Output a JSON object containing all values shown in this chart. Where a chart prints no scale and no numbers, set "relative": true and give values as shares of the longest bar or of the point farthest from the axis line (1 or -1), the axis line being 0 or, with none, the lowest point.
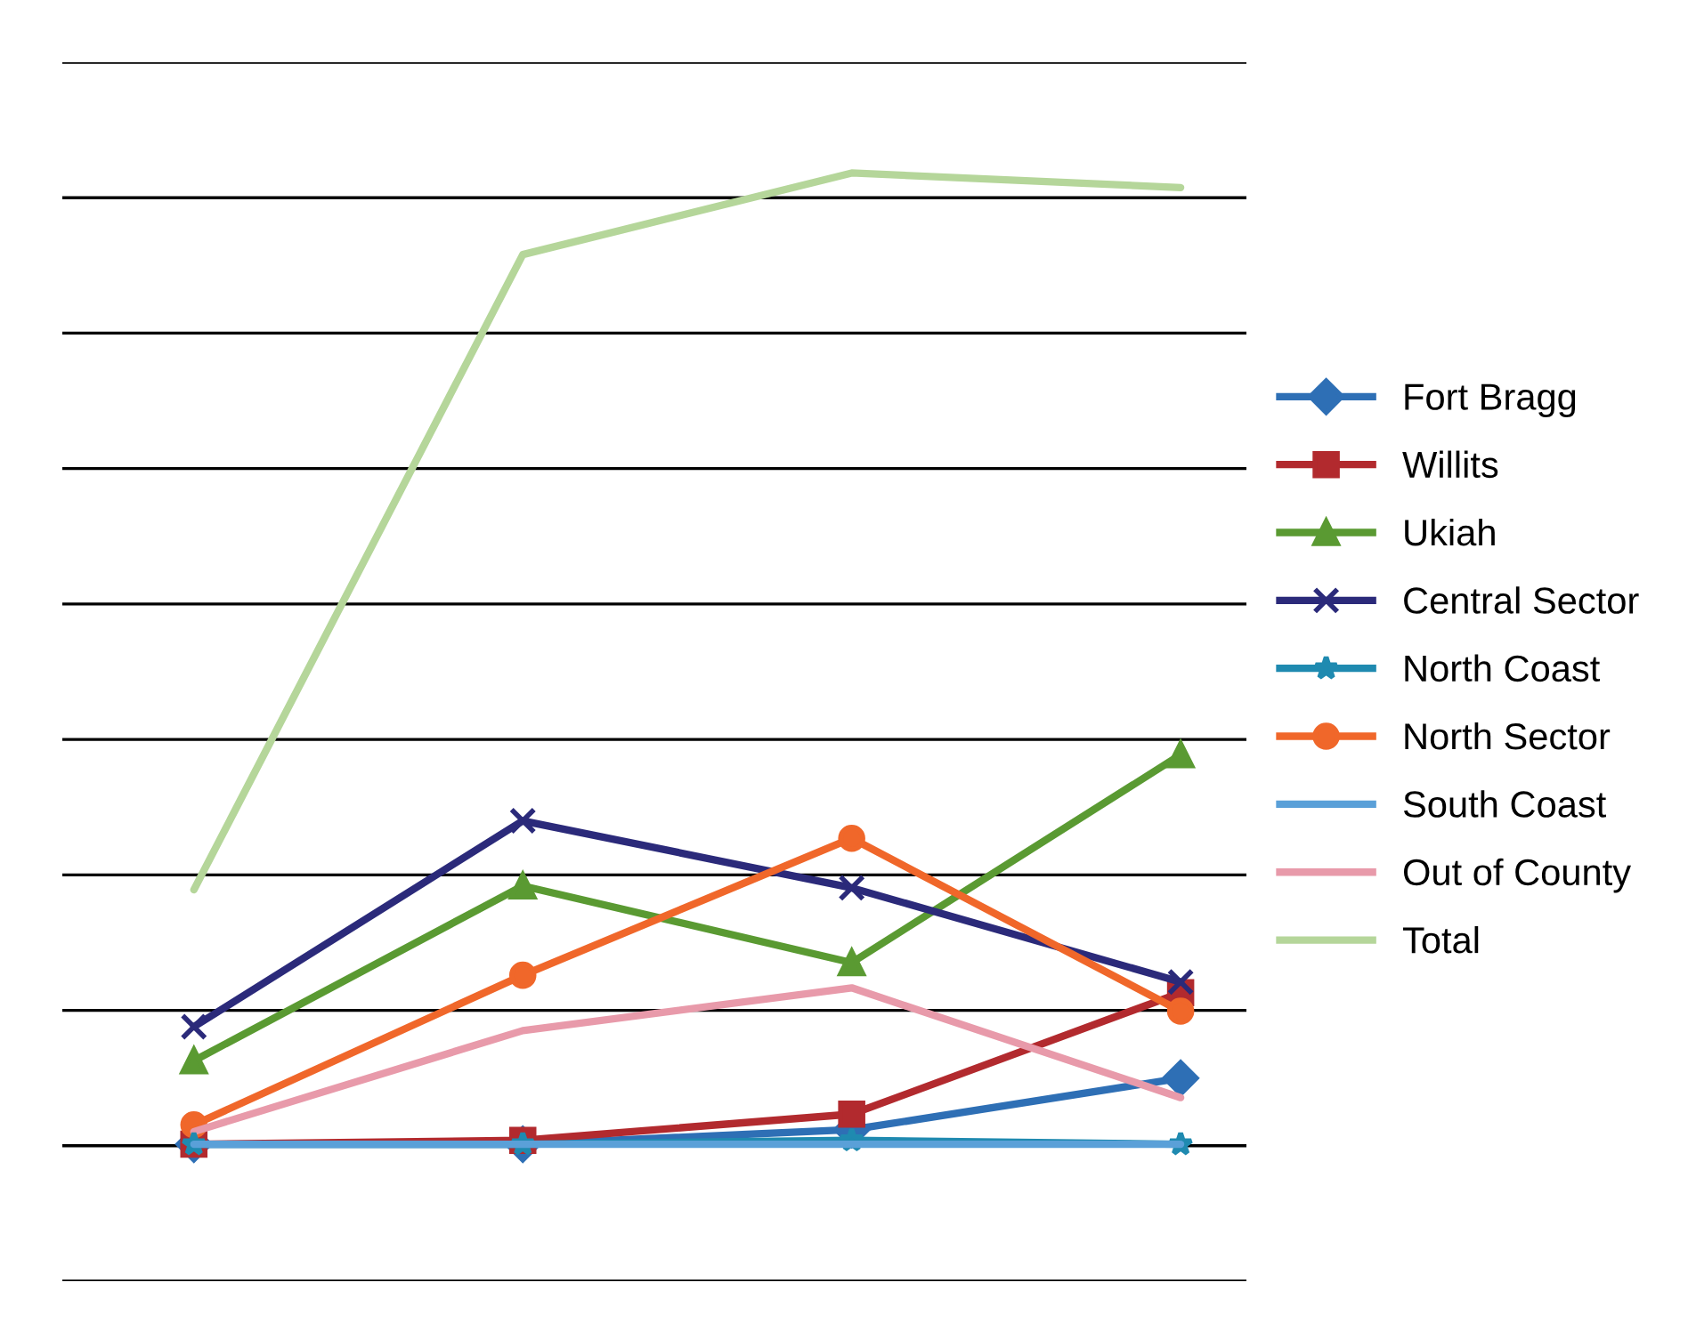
{
  "chart_data": {
    "type": "line",
    "relative": true,
    "grid": "y",
    "legend": "right",
    "categories": [
      null,
      null,
      null,
      null
    ],
    "series": [
      {
        "name": "Fort Bragg",
        "color": "#2e6fb5",
        "marker": "diamond",
        "values": [
          0,
          0,
          0.015,
          0.068
        ]
      },
      {
        "name": "Willits",
        "color": "#b22a2e",
        "marker": "square",
        "values": [
          0,
          0.004,
          0.031,
          0.156
        ]
      },
      {
        "name": "Ukiah",
        "color": "#5a9a32",
        "marker": "triangle",
        "values": [
          0.086,
          0.266,
          0.187,
          0.401
        ]
      },
      {
        "name": "Central Sector",
        "color": "#2b2a7a",
        "marker": "cross",
        "values": [
          0.121,
          0.333,
          0.264,
          0.167
        ]
      },
      {
        "name": "North Coast",
        "color": "#1f8ab0",
        "marker": "star",
        "values": [
          0,
          0,
          0.004,
          0
        ]
      },
      {
        "name": "North Sector",
        "color": "#f0672a",
        "marker": "circle",
        "values": [
          0.02,
          0.174,
          0.315,
          0.137
        ]
      },
      {
        "name": "South Coast",
        "color": "#5aa0d8",
        "marker": "none",
        "values": [
          0,
          0,
          0,
          0
        ]
      },
      {
        "name": "Out of County",
        "color": "#e89aaa",
        "marker": "none",
        "values": [
          0.013,
          0.117,
          0.161,
          0.048
        ]
      },
      {
        "name": "Total",
        "color": "#b5d69a",
        "marker": "none",
        "values": [
          0.262,
          0.916,
          1.0,
          0.985
        ]
      }
    ]
  }
}
